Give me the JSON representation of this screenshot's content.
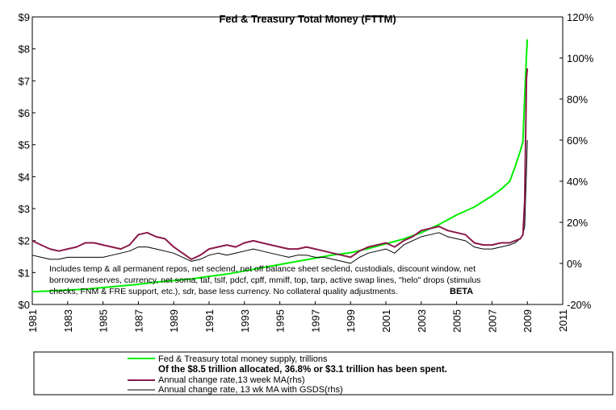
{
  "chart_data": {
    "type": "line",
    "title": "Fed & Treasury Total Money (FTTM)",
    "xlabel": "",
    "ylabel": "",
    "x_ticks": [
      "1981",
      "1983",
      "1985",
      "1987",
      "1989",
      "1991",
      "1993",
      "1995",
      "1997",
      "1999",
      "2001",
      "2003",
      "2005",
      "2007",
      "2009",
      "2011"
    ],
    "x_range": [
      1981,
      2011
    ],
    "y_left": {
      "range": [
        0,
        9
      ],
      "ticks": [
        0,
        1,
        2,
        3,
        4,
        5,
        6,
        7,
        8,
        9
      ],
      "tick_labels": [
        "$0",
        "$1",
        "$2",
        "$3",
        "$4",
        "$5",
        "$6",
        "$7",
        "$8",
        "$9"
      ]
    },
    "y_right": {
      "range": [
        -20,
        120
      ],
      "ticks": [
        -20,
        0,
        20,
        40,
        60,
        80,
        100,
        120
      ],
      "tick_labels": [
        "-20%",
        "0%",
        "20%",
        "40%",
        "60%",
        "80%",
        "100%",
        "120%"
      ]
    },
    "grid": false,
    "annotation": {
      "lines": [
        "Includes temp & all permanent repos, net seclend, net off balance sheet seclend, custodials, discount window, net",
        "borrowed reserves, currency, net soma, taf, tslf, pdcf, cpff, mmiff, top, tarp, active swap lines, \"helo\" drops (stimulus",
        "checks, FNM & FRE support, etc.), sdr, base less currency.  No collateral quality adjustments."
      ],
      "beta_label": "BETA"
    },
    "legend": {
      "placement": "bottom",
      "highlight": "Of the $8.5 trillion allocated, 36.8% or $3.1 trillion has been spent."
    },
    "series": [
      {
        "name": "Fed & Treasury total money supply, trillions",
        "axis": "left",
        "color": "#00ee00",
        "x": [
          1981,
          1982,
          1983,
          1984,
          1985,
          1986,
          1987,
          1988,
          1989,
          1990,
          1991,
          1992,
          1993,
          1994,
          1995,
          1996,
          1997,
          1998,
          1999,
          2000,
          2001,
          2002,
          2003,
          2004,
          2005,
          2006,
          2007,
          2007.5,
          2008,
          2008.3,
          2008.6,
          2008.75,
          2008.85,
          2008.95,
          2009
        ],
        "values": [
          0.4,
          0.42,
          0.45,
          0.48,
          0.53,
          0.58,
          0.63,
          0.7,
          0.75,
          0.8,
          0.88,
          0.95,
          1.05,
          1.15,
          1.25,
          1.35,
          1.45,
          1.55,
          1.62,
          1.75,
          1.9,
          2.05,
          2.25,
          2.5,
          2.8,
          3.05,
          3.4,
          3.6,
          3.85,
          4.3,
          4.8,
          5.1,
          6.5,
          7.8,
          8.3
        ]
      },
      {
        "name": "Annual change rate,13 week MA(rhs)",
        "axis": "right",
        "color": "#8b1a4a",
        "x": [
          1981,
          1981.5,
          1982,
          1982.5,
          1983,
          1983.5,
          1984,
          1984.5,
          1985,
          1985.5,
          1986,
          1986.5,
          1987,
          1987.5,
          1988,
          1988.5,
          1989,
          1989.5,
          1990,
          1990.5,
          1991,
          1991.5,
          1992,
          1992.5,
          1993,
          1993.5,
          1994,
          1994.5,
          1995,
          1995.5,
          1996,
          1996.5,
          1997,
          1997.5,
          1998,
          1998.5,
          1999,
          1999.5,
          2000,
          2000.5,
          2001,
          2001.5,
          2002,
          2002.5,
          2003,
          2003.5,
          2004,
          2004.5,
          2005,
          2005.5,
          2006,
          2006.5,
          2007,
          2007.5,
          2008,
          2008.3,
          2008.6,
          2008.75,
          2008.85,
          2008.95,
          2009
        ],
        "values": [
          11,
          9,
          7,
          6,
          7,
          8,
          10,
          10,
          9,
          8,
          7,
          9,
          14,
          15,
          13,
          12,
          8,
          5,
          2,
          4,
          7,
          8,
          9,
          8,
          10,
          11,
          10,
          9,
          8,
          7,
          7,
          8,
          7,
          6,
          5,
          4,
          3,
          6,
          8,
          9,
          10,
          8,
          11,
          13,
          16,
          17,
          18,
          16,
          15,
          14,
          10,
          9,
          9,
          10,
          10,
          11,
          12,
          14,
          30,
          90,
          95
        ]
      },
      {
        "name": "Annual change rate, 13 wk MA with GSDS(rhs)",
        "axis": "right",
        "color": "#000000",
        "x": [
          1981,
          1981.5,
          1982,
          1982.5,
          1983,
          1983.5,
          1984,
          1984.5,
          1985,
          1985.5,
          1986,
          1986.5,
          1987,
          1987.5,
          1988,
          1988.5,
          1989,
          1989.5,
          1990,
          1990.5,
          1991,
          1991.5,
          1992,
          1992.5,
          1993,
          1993.5,
          1994,
          1994.5,
          1995,
          1995.5,
          1996,
          1996.5,
          1997,
          1997.5,
          1998,
          1998.5,
          1999,
          1999.5,
          2000,
          2000.5,
          2001,
          2001.5,
          2002,
          2002.5,
          2003,
          2003.5,
          2004,
          2004.5,
          2005,
          2005.5,
          2006,
          2006.5,
          2007,
          2007.5,
          2008,
          2008.3,
          2008.6,
          2008.75,
          2008.85,
          2008.95,
          2009
        ],
        "values": [
          4,
          3,
          2,
          2,
          3,
          3,
          3,
          3,
          3,
          4,
          5,
          6,
          8,
          8,
          7,
          6,
          5,
          3,
          1,
          2,
          4,
          5,
          4,
          5,
          6,
          7,
          6,
          5,
          4,
          3,
          4,
          4,
          3,
          3,
          2,
          1,
          0,
          3,
          5,
          6,
          7,
          5,
          9,
          11,
          13,
          14,
          15,
          13,
          12,
          11,
          8,
          7,
          7,
          8,
          9,
          10,
          12,
          14,
          18,
          45,
          60
        ]
      }
    ]
  }
}
